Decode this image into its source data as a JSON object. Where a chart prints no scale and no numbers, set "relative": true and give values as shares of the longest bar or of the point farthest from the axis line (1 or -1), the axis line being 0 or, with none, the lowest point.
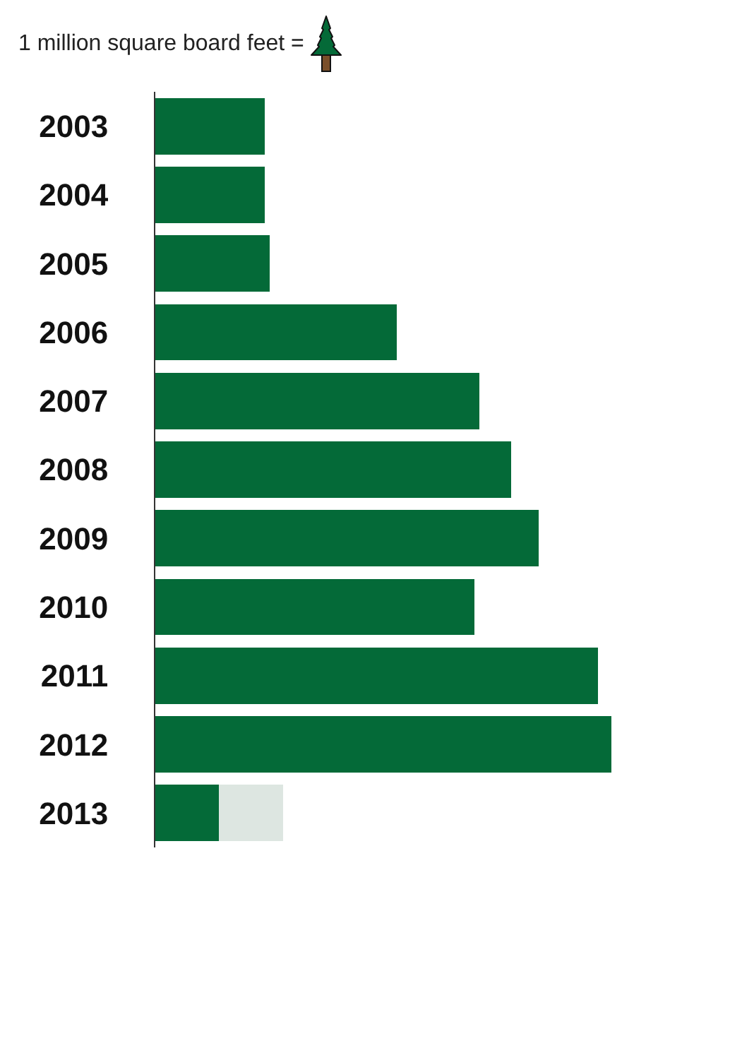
{
  "chart_data": {
    "type": "bar",
    "title": "1 million square board feet =",
    "orientation": "horizontal",
    "relative": true,
    "stacked": true,
    "categories": [
      "2003",
      "2004",
      "2005",
      "2006",
      "2007",
      "2008",
      "2009",
      "2010",
      "2011",
      "2012",
      "2013"
    ],
    "series": [
      {
        "color": "#046a38",
        "values": [
          0.24,
          0.24,
          0.25,
          0.53,
          0.71,
          0.78,
          0.84,
          0.7,
          0.97,
          1,
          0.14
        ]
      },
      {
        "color": "#dde6e1",
        "values": [
          null,
          null,
          null,
          null,
          null,
          null,
          null,
          null,
          null,
          null,
          0.14
        ]
      }
    ]
  }
}
